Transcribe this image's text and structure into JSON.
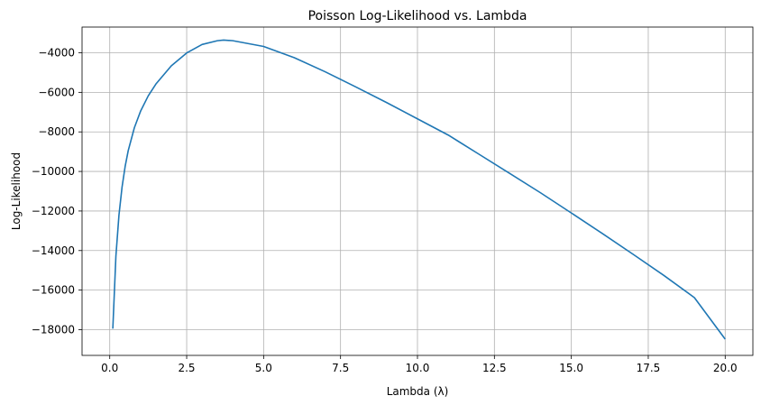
{
  "chart_data": {
    "type": "line",
    "title": "Poisson Log-Likelihood vs. Lambda",
    "xlabel": "Lambda (λ)",
    "ylabel": "Log-Likelihood",
    "xlim": [
      -0.9,
      20.9
    ],
    "ylim": [
      -19300,
      -2700
    ],
    "grid": true,
    "line_color": "#1f77b4",
    "x_ticks": [
      {
        "value": 0.0,
        "label": "0.0"
      },
      {
        "value": 2.5,
        "label": "2.5"
      },
      {
        "value": 5.0,
        "label": "5.0"
      },
      {
        "value": 7.5,
        "label": "7.5"
      },
      {
        "value": 10.0,
        "label": "10.0"
      },
      {
        "value": 12.5,
        "label": "12.5"
      },
      {
        "value": 15.0,
        "label": "15.0"
      },
      {
        "value": 17.5,
        "label": "17.5"
      },
      {
        "value": 20.0,
        "label": "20.0"
      }
    ],
    "y_ticks": [
      {
        "value": -4000,
        "label": "−4000"
      },
      {
        "value": -6000,
        "label": "−6000"
      },
      {
        "value": -8000,
        "label": "−8000"
      },
      {
        "value": -10000,
        "label": "−10000"
      },
      {
        "value": -12000,
        "label": "−12000"
      },
      {
        "value": -14000,
        "label": "−14000"
      },
      {
        "value": -16000,
        "label": "−16000"
      },
      {
        "value": -18000,
        "label": "−18000"
      }
    ],
    "series": [
      {
        "x": [
          0.1,
          0.2,
          0.3,
          0.4,
          0.5,
          0.6,
          0.8,
          1.0,
          1.25,
          1.5,
          2.0,
          2.5,
          3.0,
          3.5,
          3.7,
          4.0,
          5.0,
          6.0,
          7.0,
          8.0,
          9.0,
          10.0,
          11.0,
          12.0,
          13.0,
          14.0,
          15.0,
          16.0,
          17.0,
          18.0,
          19.0,
          20.0
        ],
        "y": [
          -17950,
          -14280,
          -12200,
          -10790,
          -9750,
          -8950,
          -7790,
          -6960,
          -6180,
          -5580,
          -4660,
          -4010,
          -3580,
          -3390,
          -3360,
          -3390,
          -3680,
          -4250,
          -4960,
          -5730,
          -6520,
          -7340,
          -8160,
          -9130,
          -10100,
          -11080,
          -12100,
          -13130,
          -14180,
          -15250,
          -16380,
          -18480
        ]
      }
    ]
  }
}
